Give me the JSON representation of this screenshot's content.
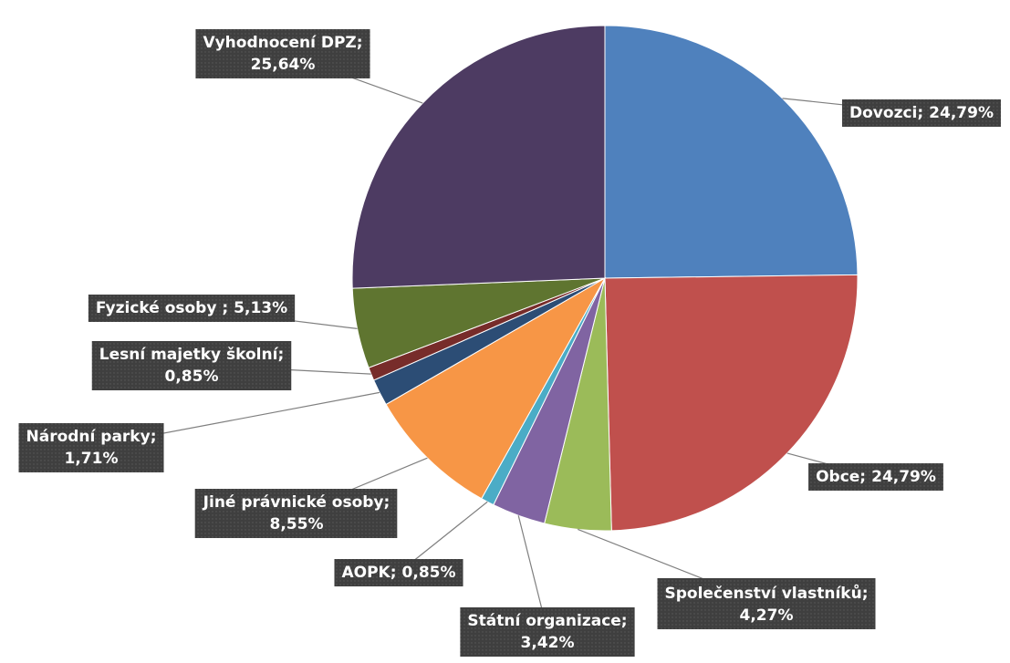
{
  "chart_data": {
    "type": "pie",
    "categories": [
      "Dovozci;",
      "Obce;",
      "Společenství vlastníků;",
      "Státní organizace;",
      "AOPK;",
      "Jiné právnické osoby;",
      "Národní parky;",
      "Lesní majetky školní;",
      "Fyzické osoby ;",
      "Vyhodnocení DPZ;"
    ],
    "values": [
      24.79,
      24.79,
      4.27,
      3.42,
      0.85,
      8.55,
      1.71,
      0.85,
      5.13,
      25.64
    ],
    "value_labels": [
      "24,79%",
      "24,79%",
      "4,27%",
      "3,42%",
      "0,85%",
      "8,55%",
      "1,71%",
      "0,85%",
      "5,13%",
      "25,64%"
    ],
    "colors": [
      "#4f81bd",
      "#c0504d",
      "#9bbb59",
      "#8064a2",
      "#4bacc6",
      "#f79646",
      "#2c4d75",
      "#772c2a",
      "#5f7530",
      "#4d3b62"
    ]
  }
}
